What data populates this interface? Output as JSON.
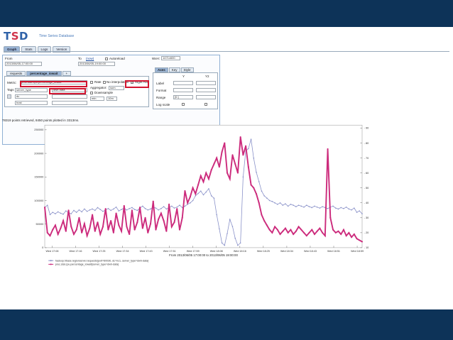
{
  "app": {
    "logo": {
      "t": "T",
      "s": "S",
      "d": "D"
    },
    "subtitle": "Time Series Database"
  },
  "tabs": [
    "Graph",
    "Stats",
    "Logs",
    "Version"
  ],
  "form": {
    "from_label": "From",
    "from_value": "2013/06/05-17:00:00",
    "to_label": "To",
    "to_link": "(now)",
    "autoreload_label": "Autoreload",
    "to_value": "2013/06/05-19:00:00",
    "wxh_label": "WxH:",
    "wxh_value": "1471x600",
    "query_tabs": [
      "requests",
      "percentage_iowait",
      "+"
    ],
    "metric_label": "Metric:",
    "metric_value": "proc.stat.cpu.percentage_iowait",
    "rate_label": "Rate",
    "nointerp_label": "No interpolation",
    "right_axis_label": "Right Axis",
    "aggregator_label": "Aggregator:",
    "aggregator_value": "sum",
    "tags_label": "Tags",
    "tag_key": "server_type",
    "tag_value": "dwh-data",
    "downsample_label": "Downsample",
    "tag2_key": "dc",
    "ds_func": "min",
    "ds_interval": "10m",
    "tag3_key": "host",
    "axes_tabs": [
      "Axes",
      "Key",
      "Style"
    ],
    "col_y": "Y",
    "col_y2": "Y2",
    "row_label": "Label",
    "row_format": "Format",
    "row_range": "Range",
    "range_value": "[0:]",
    "row_log": "Log scale"
  },
  "status": "78319 points retrieved, 8450 points plotted in 3313ms.",
  "chart_data": {
    "type": "line",
    "xlabel": "From 2013/06/05 17:00:00 to 2013/06/05 19:00:00",
    "x_ticks": [
      "Wed 17:08",
      "Wed 17:16",
      "Wed 17:25",
      "Wed 17:34",
      "Wed 17:43",
      "Wed 17:51",
      "Wed 17:59",
      "Wed 18:08",
      "Wed 18:16",
      "Wed 18:25",
      "Wed 18:34",
      "Wed 18:43",
      "Wed 18:51",
      "Wed 18:59"
    ],
    "y_ticks": [
      "250000",
      "200000",
      "150000",
      "100000",
      "50000",
      "0"
    ],
    "y_values": [
      250000,
      200000,
      150000,
      100000,
      50000,
      0
    ],
    "y2_ticks": [
      "90",
      "80",
      "70",
      "60",
      "50",
      "40",
      "30",
      "20",
      "10"
    ],
    "y2_values": [
      90,
      80,
      70,
      60,
      50,
      40,
      30,
      20,
      10
    ],
    "ylim": [
      0,
      260000
    ],
    "y2lim": [
      10,
      92
    ],
    "legend_position": "bottom-left",
    "series": [
      {
        "name": "hadoop.hbase.regionserver.requests{port=60030, dc=nc1, server_type=dwh-data}",
        "axis": "y",
        "color": "#8890c8",
        "x": [
          0,
          1,
          2,
          3,
          4,
          5,
          6,
          7,
          8,
          9,
          10,
          11,
          12,
          13,
          14,
          15,
          16,
          17,
          18,
          19,
          20,
          21,
          22,
          23,
          24,
          25,
          26,
          27,
          28,
          29,
          30,
          31,
          32,
          33,
          34,
          35,
          36,
          37,
          38,
          39,
          40,
          41,
          42,
          43,
          44,
          45,
          46,
          47,
          48,
          49,
          50,
          51,
          52,
          53,
          54,
          55,
          56,
          57,
          58,
          59,
          60,
          61,
          62,
          63,
          64,
          65,
          66,
          67,
          68,
          69,
          70,
          71,
          72,
          73,
          74,
          75,
          76,
          77,
          78,
          79,
          80,
          81,
          82,
          83,
          84,
          85,
          86,
          87,
          88,
          89,
          90,
          91,
          92,
          93,
          94,
          95,
          96,
          97,
          98,
          99,
          100,
          101,
          102,
          103,
          104,
          105,
          106,
          107,
          108,
          109,
          110,
          111,
          112,
          113,
          114,
          115,
          116,
          117,
          118,
          119,
          120
        ],
        "values": [
          85000,
          90000,
          70000,
          75000,
          72000,
          76000,
          73000,
          71000,
          78000,
          74000,
          72000,
          79000,
          75000,
          80000,
          76000,
          82000,
          77000,
          80000,
          82000,
          79000,
          85000,
          81000,
          77000,
          80000,
          83000,
          79000,
          82000,
          86000,
          78000,
          81000,
          84000,
          80000,
          83000,
          85000,
          81000,
          79000,
          84000,
          88000,
          83000,
          80000,
          82000,
          86000,
          84000,
          80000,
          83000,
          87000,
          82000,
          85000,
          88000,
          84000,
          86000,
          90000,
          85000,
          88000,
          92000,
          95000,
          100000,
          110000,
          115000,
          120000,
          112000,
          118000,
          125000,
          110000,
          105000,
          70000,
          40000,
          10000,
          5000,
          30000,
          60000,
          45000,
          20000,
          5000,
          10000,
          150000,
          205000,
          210000,
          230000,
          190000,
          160000,
          140000,
          120000,
          110000,
          105000,
          100000,
          98000,
          95000,
          92000,
          95000,
          90000,
          93000,
          88000,
          92000,
          90000,
          87000,
          90000,
          88000,
          86000,
          90000,
          87000,
          85000,
          88000,
          86000,
          84000,
          87000,
          85000,
          83000,
          86000,
          88000,
          84000,
          82000,
          85000,
          83000,
          86000,
          82000,
          80000,
          84000,
          75000,
          78000,
          72000
        ]
      },
      {
        "name": "proc.stat.cpu.percentage_iowait{server_type=dwh-data}",
        "axis": "y2",
        "color": "#cc2b7c",
        "x": [
          0,
          1,
          2,
          3,
          4,
          5,
          6,
          7,
          8,
          9,
          10,
          11,
          12,
          13,
          14,
          15,
          16,
          17,
          18,
          19,
          20,
          21,
          22,
          23,
          24,
          25,
          26,
          27,
          28,
          29,
          30,
          31,
          32,
          33,
          34,
          35,
          36,
          37,
          38,
          39,
          40,
          41,
          42,
          43,
          44,
          45,
          46,
          47,
          48,
          49,
          50,
          51,
          52,
          53,
          54,
          55,
          56,
          57,
          58,
          59,
          60,
          61,
          62,
          63,
          64,
          65,
          66,
          67,
          68,
          69,
          70,
          71,
          72,
          73,
          74,
          75,
          76,
          77,
          78,
          79,
          80,
          81,
          82,
          83,
          84,
          85,
          86,
          87,
          88,
          89,
          90,
          91,
          92,
          93,
          94,
          95,
          96,
          97,
          98,
          99,
          100,
          101,
          102,
          103,
          104,
          105,
          106,
          107,
          108,
          109,
          110,
          111,
          112,
          113,
          114,
          115,
          116,
          117,
          118,
          119,
          120
        ],
        "values": [
          37,
          20,
          18,
          22,
          25,
          19,
          23,
          28,
          21,
          35,
          24,
          19,
          22,
          30,
          20,
          26,
          18,
          23,
          32,
          21,
          27,
          19,
          24,
          36,
          22,
          28,
          20,
          33,
          25,
          21,
          38,
          24,
          19,
          35,
          22,
          27,
          37,
          23,
          30,
          20,
          26,
          41,
          22,
          29,
          33,
          28,
          21,
          39,
          24,
          27,
          36,
          22,
          30,
          48,
          40,
          44,
          50,
          46,
          52,
          58,
          54,
          60,
          56,
          62,
          66,
          70,
          64,
          74,
          80,
          60,
          56,
          72,
          66,
          60,
          84,
          72,
          78,
          64,
          52,
          50,
          46,
          40,
          32,
          28,
          25,
          22,
          20,
          24,
          22,
          19,
          21,
          23,
          20,
          22,
          19,
          21,
          24,
          22,
          20,
          18,
          20,
          22,
          19,
          21,
          23,
          20,
          18,
          76,
          30,
          22,
          20,
          21,
          19,
          22,
          18,
          20,
          17,
          19,
          16,
          15,
          14
        ]
      }
    ]
  }
}
